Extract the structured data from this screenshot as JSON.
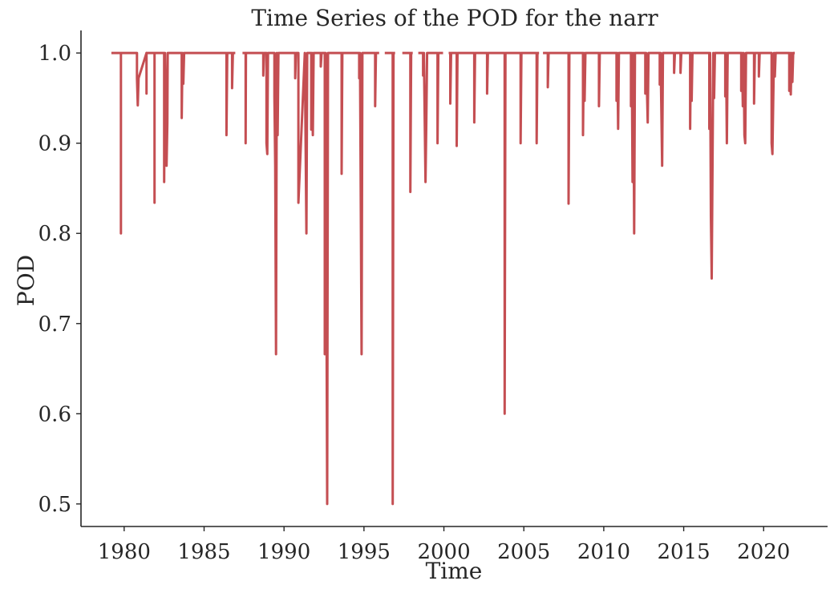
{
  "chart_data": {
    "type": "line",
    "title": "Time Series of the POD for the narr",
    "xlabel": "Time",
    "ylabel": "POD",
    "xlim": [
      1977.3,
      2024.0
    ],
    "ylim": [
      0.475,
      1.025
    ],
    "x_ticks": [
      1980,
      1985,
      1990,
      1995,
      2000,
      2005,
      2010,
      2015,
      2020
    ],
    "x_tick_labels": [
      "1980",
      "1985",
      "1990",
      "1995",
      "2000",
      "2005",
      "2010",
      "2015",
      "2020"
    ],
    "y_ticks": [
      0.5,
      0.6,
      0.7,
      0.8,
      0.9,
      1.0
    ],
    "y_tick_labels": [
      "0.5",
      "0.6",
      "0.7",
      "0.8",
      "0.9",
      "1.0"
    ],
    "grid": false,
    "series": [
      {
        "color": "#c44e52",
        "segments": [
          [
            [
              1979.2,
              1.0
            ],
            [
              1979.8,
              1.0
            ],
            [
              1979.8,
              0.8
            ],
            [
              1979.8,
              1.0
            ],
            [
              1980.8,
              1.0
            ],
            [
              1980.8,
              0.972
            ],
            [
              1980.85,
              0.942
            ],
            [
              1980.9,
              0.972
            ],
            [
              1981.4,
              1.0
            ],
            [
              1981.4,
              0.955
            ],
            [
              1981.4,
              1.0
            ],
            [
              1981.9,
              1.0
            ],
            [
              1981.9,
              0.834
            ],
            [
              1981.9,
              1.0
            ],
            [
              1982.5,
              1.0
            ],
            [
              1982.5,
              0.857
            ],
            [
              1982.55,
              1.0
            ],
            [
              1982.65,
              0.875
            ],
            [
              1982.7,
              0.923
            ],
            [
              1982.72,
              1.0
            ],
            [
              1983.6,
              1.0
            ],
            [
              1983.6,
              0.928
            ],
            [
              1983.65,
              1.0
            ],
            [
              1983.7,
              0.966
            ],
            [
              1983.75,
              1.0
            ],
            [
              1986.4,
              1.0
            ],
            [
              1986.4,
              0.909
            ],
            [
              1986.45,
              1.0
            ],
            [
              1986.75,
              1.0
            ],
            [
              1986.75,
              0.961
            ],
            [
              1986.8,
              1.0
            ],
            [
              1986.95,
              1.0
            ]
          ],
          [
            [
              1987.4,
              1.0
            ],
            [
              1987.6,
              1.0
            ],
            [
              1987.6,
              0.9
            ],
            [
              1987.62,
              1.0
            ],
            [
              1988.7,
              1.0
            ],
            [
              1988.7,
              0.975
            ],
            [
              1988.75,
              1.0
            ],
            [
              1988.9,
              1.0
            ],
            [
              1988.9,
              0.9
            ],
            [
              1988.95,
              0.888
            ],
            [
              1989.0,
              1.0
            ],
            [
              1989.4,
              1.0
            ],
            [
              1989.4,
              0.952
            ],
            [
              1989.45,
              0.875
            ],
            [
              1989.5,
              0.666
            ],
            [
              1989.55,
              1.0
            ],
            [
              1989.6,
              0.909
            ],
            [
              1989.65,
              1.0
            ],
            [
              1990.7,
              1.0
            ],
            [
              1990.7,
              0.972
            ],
            [
              1990.75,
              1.0
            ],
            [
              1990.9,
              1.0
            ],
            [
              1990.9,
              0.834
            ],
            [
              1991.3,
              1.0
            ],
            [
              1991.4,
              0.8
            ],
            [
              1991.45,
              1.0
            ],
            [
              1991.7,
              1.0
            ],
            [
              1991.7,
              0.915
            ],
            [
              1991.75,
              1.0
            ],
            [
              1991.8,
              0.909
            ],
            [
              1991.85,
              1.0
            ],
            [
              1992.3,
              1.0
            ],
            [
              1992.3,
              0.985
            ],
            [
              1992.35,
              1.0
            ],
            [
              1992.55,
              1.0
            ],
            [
              1992.55,
              0.666
            ],
            [
              1992.6,
              1.0
            ],
            [
              1992.7,
              0.5
            ],
            [
              1992.75,
              1.0
            ],
            [
              1993.6,
              1.0
            ],
            [
              1993.6,
              0.866
            ],
            [
              1993.65,
              1.0
            ],
            [
              1994.7,
              1.0
            ],
            [
              1994.7,
              0.972
            ],
            [
              1994.75,
              1.0
            ],
            [
              1994.85,
              0.666
            ],
            [
              1994.9,
              1.0
            ],
            [
              1995.7,
              1.0
            ],
            [
              1995.7,
              0.941
            ],
            [
              1995.75,
              1.0
            ],
            [
              1995.95,
              1.0
            ]
          ],
          [
            [
              1996.3,
              1.0
            ],
            [
              1996.8,
              1.0
            ],
            [
              1996.8,
              0.5
            ],
            [
              1996.85,
              1.0
            ],
            [
              1996.95,
              1.0
            ]
          ],
          [
            [
              1997.4,
              1.0
            ],
            [
              1997.9,
              1.0
            ],
            [
              1997.9,
              0.846
            ],
            [
              1997.95,
              1.0
            ],
            [
              1998.05,
              1.0
            ]
          ],
          [
            [
              1998.4,
              1.0
            ],
            [
              1998.7,
              1.0
            ],
            [
              1998.7,
              0.975
            ],
            [
              1998.75,
              1.0
            ],
            [
              1998.85,
              0.857
            ],
            [
              1998.9,
              0.923
            ],
            [
              1998.95,
              1.0
            ],
            [
              1999.6,
              1.0
            ],
            [
              1999.6,
              0.9
            ],
            [
              1999.65,
              1.0
            ],
            [
              1999.95,
              1.0
            ]
          ],
          [
            [
              2000.3,
              1.0
            ],
            [
              2000.4,
              1.0
            ],
            [
              2000.4,
              0.944
            ],
            [
              2000.45,
              1.0
            ],
            [
              2000.8,
              1.0
            ],
            [
              2000.8,
              0.897
            ],
            [
              2000.85,
              1.0
            ],
            [
              2001.9,
              1.0
            ],
            [
              2001.9,
              0.923
            ],
            [
              2001.95,
              1.0
            ],
            [
              2002.7,
              1.0
            ],
            [
              2002.7,
              0.955
            ],
            [
              2002.75,
              1.0
            ],
            [
              2003.8,
              1.0
            ],
            [
              2003.8,
              0.6
            ],
            [
              2003.85,
              1.0
            ],
            [
              2004.8,
              1.0
            ],
            [
              2004.8,
              0.9
            ],
            [
              2004.85,
              1.0
            ],
            [
              2005.8,
              1.0
            ],
            [
              2005.8,
              0.9
            ],
            [
              2005.85,
              1.0
            ],
            [
              2005.95,
              1.0
            ]
          ],
          [
            [
              2006.2,
              1.0
            ],
            [
              2006.5,
              1.0
            ],
            [
              2006.5,
              0.962
            ],
            [
              2006.55,
              1.0
            ],
            [
              2007.8,
              1.0
            ],
            [
              2007.8,
              0.833
            ],
            [
              2007.85,
              1.0
            ],
            [
              2008.7,
              1.0
            ],
            [
              2008.7,
              0.909
            ],
            [
              2008.75,
              1.0
            ],
            [
              2008.8,
              0.947
            ],
            [
              2008.85,
              1.0
            ],
            [
              2009.7,
              1.0
            ],
            [
              2009.7,
              0.941
            ],
            [
              2009.75,
              1.0
            ],
            [
              2010.8,
              1.0
            ],
            [
              2010.8,
              0.947
            ],
            [
              2010.85,
              1.0
            ],
            [
              2010.9,
              0.916
            ],
            [
              2010.95,
              1.0
            ],
            [
              2011.7,
              1.0
            ],
            [
              2011.7,
              0.941
            ],
            [
              2011.75,
              1.0
            ],
            [
              2011.8,
              0.857
            ],
            [
              2011.85,
              1.0
            ],
            [
              2011.9,
              0.8
            ],
            [
              2011.95,
              1.0
            ],
            [
              2012.6,
              1.0
            ],
            [
              2012.6,
              0.955
            ],
            [
              2012.65,
              1.0
            ],
            [
              2012.75,
              0.923
            ],
            [
              2012.8,
              1.0
            ],
            [
              2013.5,
              1.0
            ],
            [
              2013.5,
              0.965
            ],
            [
              2013.55,
              1.0
            ],
            [
              2013.65,
              0.875
            ],
            [
              2013.7,
              1.0
            ],
            [
              2014.4,
              1.0
            ],
            [
              2014.4,
              0.978
            ],
            [
              2014.45,
              1.0
            ],
            [
              2014.8,
              1.0
            ],
            [
              2014.8,
              0.978
            ],
            [
              2014.85,
              1.0
            ],
            [
              2015.4,
              1.0
            ],
            [
              2015.4,
              0.916
            ],
            [
              2015.45,
              1.0
            ],
            [
              2015.5,
              0.947
            ],
            [
              2015.55,
              1.0
            ],
            [
              2016.6,
              1.0
            ],
            [
              2016.6,
              0.916
            ],
            [
              2016.65,
              1.0
            ],
            [
              2016.7,
              0.818
            ],
            [
              2016.75,
              0.75
            ],
            [
              2016.8,
              0.875
            ],
            [
              2016.85,
              1.0
            ],
            [
              2016.9,
              0.95
            ],
            [
              2016.95,
              1.0
            ],
            [
              2017.6,
              1.0
            ],
            [
              2017.6,
              0.952
            ],
            [
              2017.65,
              1.0
            ],
            [
              2017.7,
              0.9
            ],
            [
              2017.75,
              1.0
            ],
            [
              2018.6,
              1.0
            ],
            [
              2018.6,
              0.958
            ],
            [
              2018.65,
              1.0
            ],
            [
              2018.7,
              0.941
            ],
            [
              2018.75,
              1.0
            ],
            [
              2018.8,
              0.909
            ],
            [
              2018.85,
              0.9
            ],
            [
              2018.9,
              1.0
            ],
            [
              2019.4,
              1.0
            ],
            [
              2019.4,
              0.944
            ],
            [
              2019.45,
              1.0
            ],
            [
              2019.7,
              1.0
            ],
            [
              2019.7,
              0.974
            ],
            [
              2019.75,
              1.0
            ],
            [
              2020.5,
              1.0
            ],
            [
              2020.5,
              0.9
            ],
            [
              2020.55,
              0.888
            ],
            [
              2020.6,
              0.947
            ],
            [
              2020.65,
              1.0
            ],
            [
              2020.7,
              0.974
            ],
            [
              2020.75,
              1.0
            ],
            [
              2021.6,
              1.0
            ],
            [
              2021.6,
              0.958
            ],
            [
              2021.65,
              1.0
            ],
            [
              2021.7,
              0.954
            ],
            [
              2021.75,
              1.0
            ],
            [
              2021.8,
              0.968
            ],
            [
              2021.85,
              1.0
            ],
            [
              2021.95,
              1.0
            ]
          ]
        ]
      }
    ]
  }
}
